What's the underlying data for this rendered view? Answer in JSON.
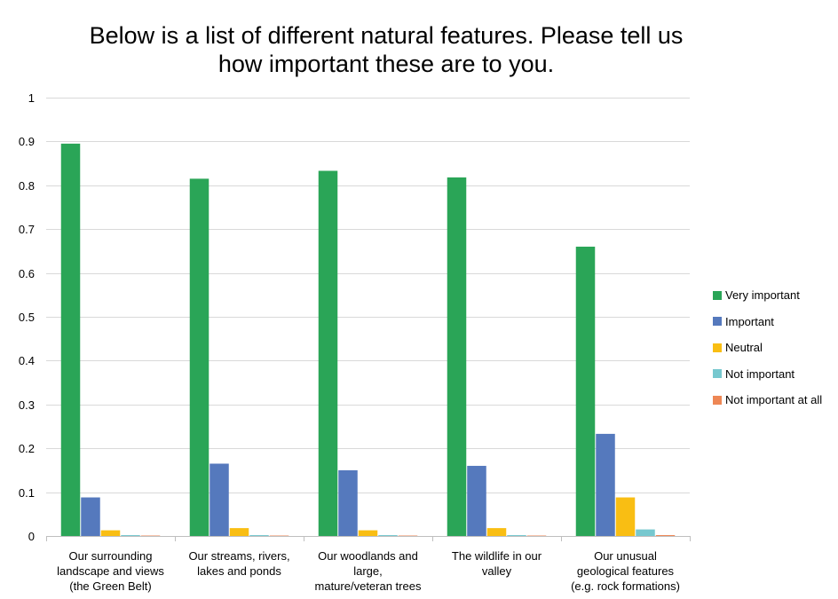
{
  "chart_data": {
    "type": "bar",
    "title": "Below is a list of different natural features.  Please tell us how important these are to you.",
    "title_lines": [
      "Below is a list of different natural features.  Please tell us",
      "how important these are to you."
    ],
    "categories": [
      [
        "Our surrounding",
        "landscape and views",
        "(the Green Belt)"
      ],
      [
        "Our streams, rivers,",
        "lakes and ponds"
      ],
      [
        "Our woodlands and",
        "large,",
        "mature/veteran trees"
      ],
      [
        "The wildlife in our",
        "valley"
      ],
      [
        "Our unusual",
        "geological features",
        "(e.g. rock formations)"
      ]
    ],
    "series": [
      {
        "name": "Very important",
        "color": "#2AA557",
        "values": [
          0.895,
          0.815,
          0.833,
          0.818,
          0.66
        ]
      },
      {
        "name": "Important",
        "color": "#5579BD",
        "values": [
          0.088,
          0.165,
          0.15,
          0.16,
          0.233
        ]
      },
      {
        "name": "Neutral",
        "color": "#F9BE13",
        "values": [
          0.013,
          0.018,
          0.013,
          0.018,
          0.088
        ]
      },
      {
        "name": "Not important",
        "color": "#77C8CF",
        "values": [
          0.002,
          0.002,
          0.002,
          0.002,
          0.015
        ]
      },
      {
        "name": "Not important at all",
        "color": "#EE8755",
        "values": [
          0.001,
          0.001,
          0.001,
          0.001,
          0.002
        ]
      }
    ],
    "ylim": [
      0,
      1
    ],
    "yticks": [
      "0",
      "0.1",
      "0.2",
      "0.3",
      "0.4",
      "0.5",
      "0.6",
      "0.7",
      "0.8",
      "0.9",
      "1"
    ],
    "xlabel": "",
    "ylabel": "",
    "grid": true,
    "legend_position": "right"
  }
}
